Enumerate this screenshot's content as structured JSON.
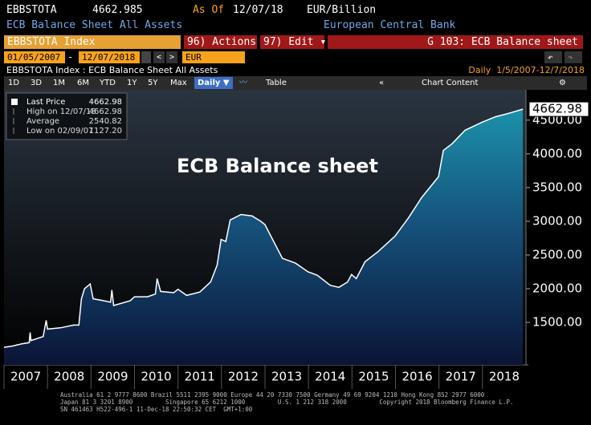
{
  "header": {
    "ticker": "EBBSTOTA",
    "price": "4662.985",
    "as_of_label": "As Of",
    "as_of": "12/07/18",
    "units": "EUR/Billion",
    "name": "ECB Balance Sheet All Assets",
    "source": "European Central Bank"
  },
  "toolbar": {
    "security": "EBBSTOTA Index",
    "actions": "96) Actions ▾",
    "edit": "97) Edit ▾",
    "page": "G 103: ECB Balance sheet",
    "start": "01/05/2007",
    "end": "12/07/2018",
    "currency": "EUR",
    "description": "EBBSTOTA Index : ECB Balance Sheet All Assets",
    "range": "Daily  1/5/2007-12/7/2018",
    "periods": [
      "1D",
      "3D",
      "1M",
      "6M",
      "YTD",
      "1Y",
      "5Y",
      "Max"
    ],
    "frequency": "Daily ▼",
    "table": "Table",
    "chart_content": "Chart Content"
  },
  "chart_data": {
    "type": "area",
    "annotation": "ECB Balance sheet",
    "series": [
      {
        "name": "Last Price",
        "color": "#ffffff",
        "x": [
          2007.0,
          2007.2,
          2007.4,
          2007.58,
          2007.6,
          2007.62,
          2007.9,
          2007.97,
          2008.0,
          2008.3,
          2008.6,
          2008.72,
          2008.78,
          2008.85,
          2008.98,
          2009.05,
          2009.3,
          2009.45,
          2009.48,
          2009.52,
          2009.9,
          2010.0,
          2010.3,
          2010.48,
          2010.52,
          2010.6,
          2010.9,
          2011.0,
          2011.2,
          2011.5,
          2011.75,
          2011.9,
          2011.99,
          2012.1,
          2012.2,
          2012.45,
          2012.7,
          2012.9,
          2013.0,
          2013.2,
          2013.4,
          2013.7,
          2013.99,
          2014.2,
          2014.5,
          2014.7,
          2014.9,
          2014.99,
          2015.1,
          2015.3,
          2015.6,
          2015.99,
          2016.3,
          2016.6,
          2016.99,
          2017.1,
          2017.3,
          2017.6,
          2017.99,
          2018.3,
          2018.6,
          2018.93
        ],
        "values": [
          1130,
          1150,
          1180,
          1200,
          1350,
          1230,
          1290,
          1530,
          1400,
          1420,
          1460,
          1460,
          1850,
          2000,
          2070,
          1850,
          1820,
          1800,
          1980,
          1750,
          1820,
          1880,
          1880,
          1920,
          2150,
          1960,
          1940,
          1990,
          1900,
          1950,
          2100,
          2350,
          2730,
          2700,
          3020,
          3100,
          3080,
          3000,
          2950,
          2700,
          2450,
          2380,
          2250,
          2200,
          2050,
          2020,
          2100,
          2210,
          2150,
          2400,
          2550,
          2780,
          3050,
          3350,
          3660,
          4050,
          4150,
          4350,
          4470,
          4550,
          4600,
          4662.98
        ]
      }
    ],
    "last_value_label": "4662.98",
    "legend_stats": [
      {
        "label": "High on 12/07/18",
        "value": "4662.98"
      },
      {
        "label": "Average",
        "value": "2540.82"
      },
      {
        "label": "Low on 02/09/07",
        "value": "1127.20"
      }
    ],
    "last_price_value": "4662.98",
    "xlim": [
      2007,
      2019
    ],
    "xticks": [
      2007,
      2008,
      2009,
      2010,
      2011,
      2012,
      2013,
      2014,
      2015,
      2016,
      2017,
      2018
    ],
    "ylim": [
      870,
      4950
    ],
    "yticks": [
      {
        "value": 1500,
        "label": "1500.00"
      },
      {
        "value": 2000,
        "label": "2000.00"
      },
      {
        "value": 2500,
        "label": "2500.00"
      },
      {
        "value": 3000,
        "label": "3000.00"
      },
      {
        "value": 3500,
        "label": "3500.00"
      },
      {
        "value": 4000,
        "label": "4000.00"
      },
      {
        "value": 4500,
        "label": "4500.00"
      }
    ],
    "y_axis_side": "right"
  },
  "footer": {
    "lines": [
      "Australia 61 2 9777 8600 Brazil 5511 2395 9000 Europe 44 20 7330 7500 Germany 49 69 9204 1210 Hong Kong 852 2977 6000",
      "Japan 81 3 3201 8900         Singapore 65 6212 1000         U.S. 1 212 318 2000         Copyright 2018 Bloomberg Finance L.P.",
      "SN 461463 H522-496-1 11-Dec-18 22:50:32 CET  GMT+1:00"
    ]
  }
}
